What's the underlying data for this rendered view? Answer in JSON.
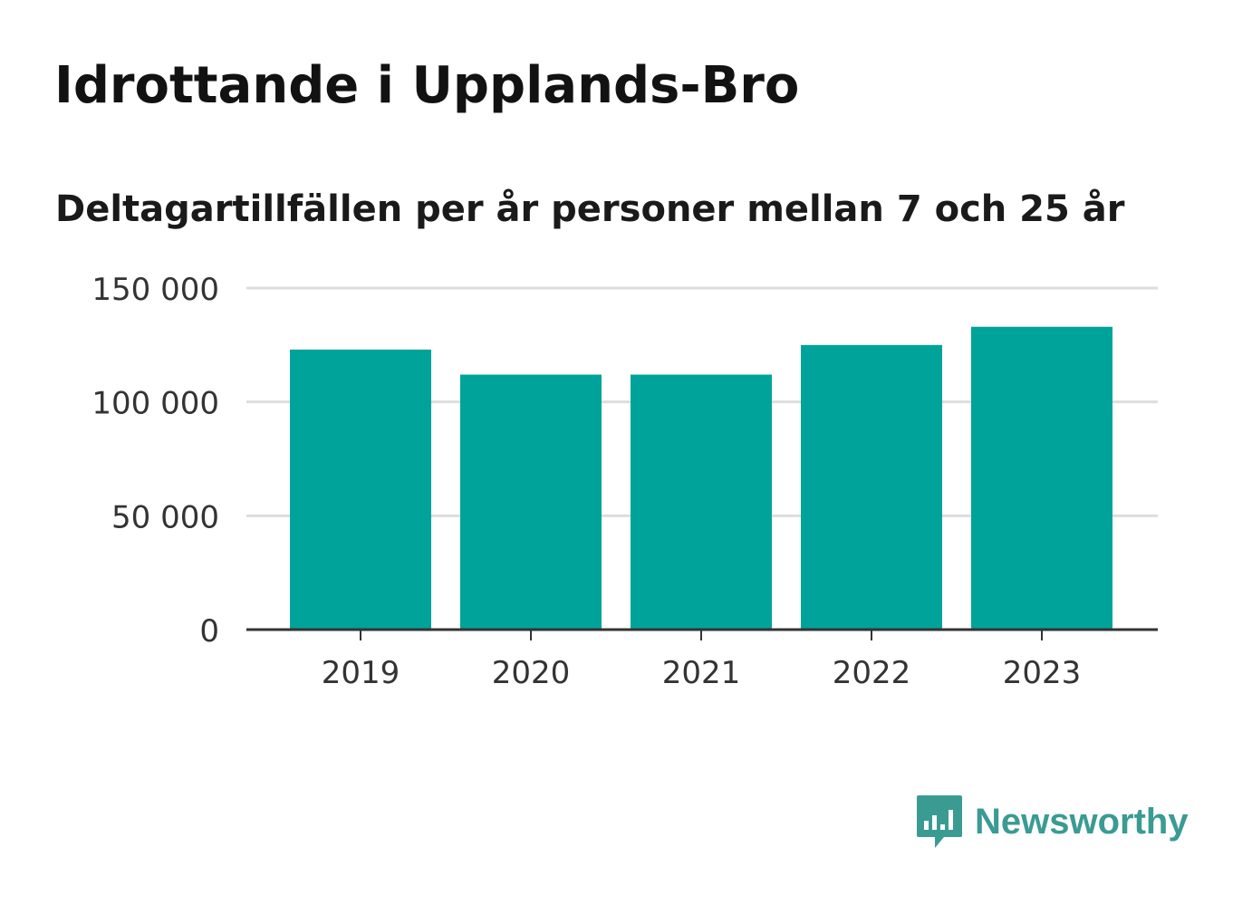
{
  "header": {
    "title": "Idrottande i Upplands-Bro",
    "subtitle": "Deltagartillfällen per år personer mellan 7 och 25 år"
  },
  "brand": {
    "name": "Newsworthy",
    "color": "#3a9b93",
    "icon": "speech-bubble-bar-chart-icon"
  },
  "colors": {
    "bar": "#00a39a",
    "grid": "#dddddd",
    "axis": "#333333",
    "tick_text": "#333333"
  },
  "chart_data": {
    "type": "bar",
    "categories": [
      "2019",
      "2020",
      "2021",
      "2022",
      "2023"
    ],
    "values": [
      123000,
      112000,
      112000,
      125000,
      133000
    ],
    "ylim": [
      0,
      150000
    ],
    "yticks": [
      0,
      50000,
      100000,
      150000
    ],
    "ytick_labels": [
      "0",
      "50 000",
      "100 000",
      "150 000"
    ],
    "grid": true,
    "xlabel": "",
    "ylabel": ""
  }
}
